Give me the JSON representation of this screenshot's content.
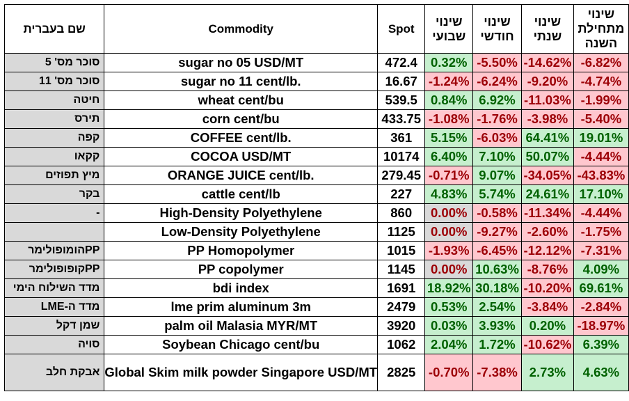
{
  "headers": {
    "hebrew_name": "שם בעברית",
    "commodity": "Commodity",
    "spot": "Spot",
    "weekly": "שינוי שבועי",
    "monthly": "שינוי חודשי",
    "yearly": "שינוי שנתי",
    "ytd": "שינוי מתחילת השנה"
  },
  "rows": [
    {
      "heb": "סוכר מס' 5",
      "name": "sugar no 05 USD/MT",
      "spot": "472.4",
      "w": "0.32%",
      "m": "-5.50%",
      "y": "-14.62%",
      "ytd": "-6.82%"
    },
    {
      "heb": "סוכר מס' 11",
      "name": "sugar no 11 cent/lb.",
      "spot": "16.67",
      "w": "-1.24%",
      "m": "-6.24%",
      "y": "-9.20%",
      "ytd": "-4.74%"
    },
    {
      "heb": "חיטה",
      "name": "wheat cent/bu",
      "spot": "539.5",
      "w": "0.84%",
      "m": "6.92%",
      "y": "-11.03%",
      "ytd": "-1.99%"
    },
    {
      "heb": "תירס",
      "name": "corn cent/bu",
      "spot": "433.75",
      "w": "-1.08%",
      "m": "-1.76%",
      "y": "-3.98%",
      "ytd": "-5.40%"
    },
    {
      "heb": "קפה",
      "name": "COFFEE cent/lb.",
      "spot": "361",
      "w": "5.15%",
      "m": "-6.03%",
      "y": "64.41%",
      "ytd": "19.01%"
    },
    {
      "heb": "קקאו",
      "name": "COCOA USD/MT",
      "spot": "10174",
      "w": "6.40%",
      "m": "7.10%",
      "y": "50.07%",
      "ytd": "-4.44%"
    },
    {
      "heb": "מיץ תפוזים",
      "name": "ORANGE JUICE cent/lb.",
      "spot": "279.45",
      "w": "-0.71%",
      "m": "9.07%",
      "y": "-34.05%",
      "ytd": "-43.83%"
    },
    {
      "heb": "בקר",
      "name": "cattle cent/lb",
      "spot": "227",
      "w": "4.83%",
      "m": "5.74%",
      "y": "24.61%",
      "ytd": "17.10%"
    },
    {
      "heb": "-",
      "name": "High-Density Polyethylene",
      "spot": "860",
      "w": "0.00%",
      "m": "-0.58%",
      "y": "-11.34%",
      "ytd": "-4.44%"
    },
    {
      "heb": "",
      "name": "Low-Density Polyethylene",
      "spot": "1125",
      "w": "0.00%",
      "m": "-9.27%",
      "y": "-2.60%",
      "ytd": "-1.75%"
    },
    {
      "heb": "PPהומופולימר",
      "name": "PP Homopolymer",
      "spot": "1015",
      "w": "-1.93%",
      "m": "-6.45%",
      "y": "-12.12%",
      "ytd": "-7.31%"
    },
    {
      "heb": "PPקופופולימר",
      "name": "PP copolymer",
      "spot": "1145",
      "w": "0.00%",
      "m": "10.63%",
      "y": "-8.76%",
      "ytd": "4.09%"
    },
    {
      "heb": "מדד השילוח הימי",
      "name": "bdi index",
      "spot": "1691",
      "w": "18.92%",
      "m": "30.18%",
      "y": "-10.20%",
      "ytd": "69.61%"
    },
    {
      "heb": "מדד ה-LME",
      "name": "lme prim aluminum 3m",
      "spot": "2479",
      "w": "0.53%",
      "m": "2.54%",
      "y": "-3.84%",
      "ytd": "-2.84%"
    },
    {
      "heb": "שמן דקל",
      "name": "palm oil Malasia MYR/MT",
      "spot": "3920",
      "w": "0.03%",
      "m": "3.93%",
      "y": "0.20%",
      "ytd": "-18.97%"
    },
    {
      "heb": "סויה",
      "name": "Soybean Chicago cent/bu",
      "spot": "1062",
      "w": "2.04%",
      "m": "1.72%",
      "y": "-10.62%",
      "ytd": "6.39%"
    },
    {
      "heb": "אבקת חלב",
      "name": "Global Skim milk powder Singapore USD/MT",
      "spot": "2825",
      "w": "-0.70%",
      "m": "-7.38%",
      "y": "2.73%",
      "ytd": "4.63%"
    }
  ],
  "colors": {
    "positive_fill": "#c6efce",
    "positive_text": "#006100",
    "negative_fill": "#ffc7ce",
    "negative_text": "#9c0006",
    "label_fill": "#d9d9d9"
  }
}
